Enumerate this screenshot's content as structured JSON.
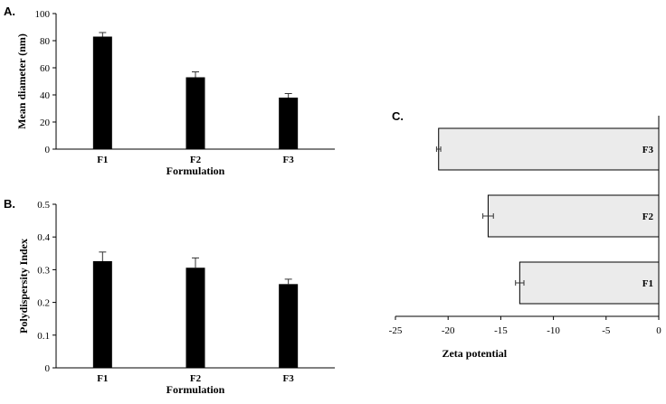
{
  "panels": {
    "a": "A.",
    "b": "B.",
    "c": "C."
  },
  "chart_data": [
    {
      "type": "bar",
      "categories": [
        "F1",
        "F2",
        "F3"
      ],
      "values": [
        83,
        53,
        38
      ],
      "errors": [
        3,
        4,
        3
      ],
      "xlabel": "Formulation",
      "ylabel": "Mean diameter (nm)",
      "ylim": [
        0,
        100
      ],
      "yticks": [
        "0",
        "20",
        "40",
        "60",
        "80",
        "100"
      ],
      "bar_color": "#000000"
    },
    {
      "type": "bar",
      "categories": [
        "F1",
        "F2",
        "F3"
      ],
      "values": [
        0.326,
        0.306,
        0.256
      ],
      "errors": [
        0.028,
        0.03,
        0.015
      ],
      "xlabel": "Formulation",
      "ylabel": "Polydispersity Index",
      "ylim": [
        0,
        0.5
      ],
      "yticks": [
        "0",
        "0.1",
        "0.2",
        "0.3",
        "0.4",
        "0.5"
      ],
      "bar_color": "#000000"
    },
    {
      "type": "bar",
      "orientation": "horizontal",
      "categories": [
        "F1",
        "F2",
        "F3"
      ],
      "values": [
        -13.2,
        -16.2,
        -20.9
      ],
      "errors": [
        0.4,
        0.5,
        0.2
      ],
      "xlabel": "Zeta potential",
      "xlim": [
        -25,
        0
      ],
      "xticks": [
        "-25",
        "-20",
        "-15",
        "-10",
        "-5",
        "0"
      ],
      "bar_color": "#ebebeb"
    }
  ]
}
